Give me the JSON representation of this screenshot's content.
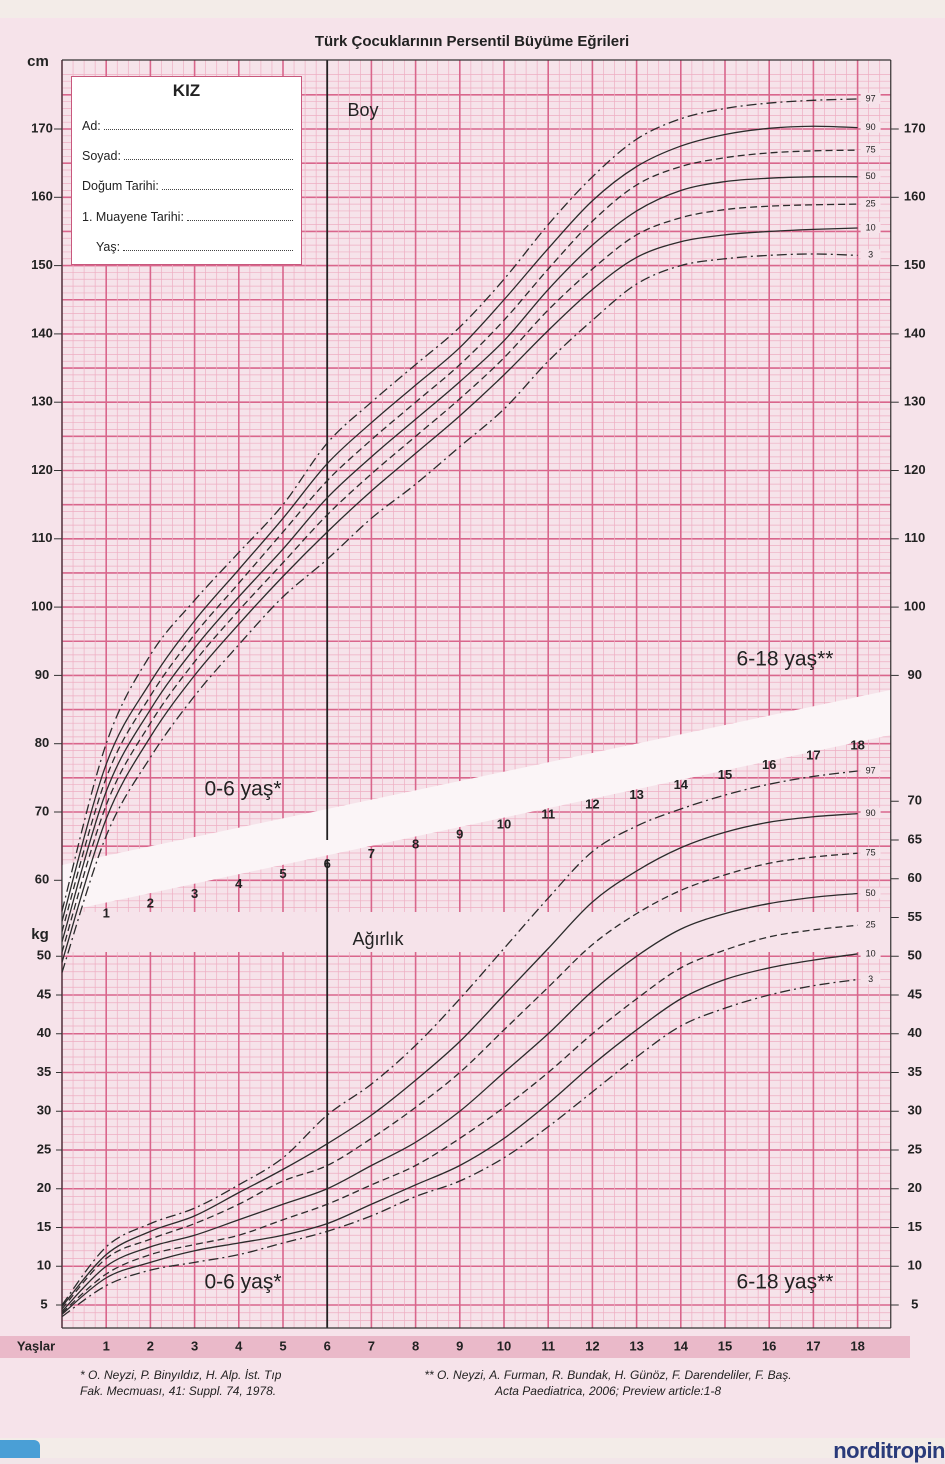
{
  "title": "Türk Çocuklarının Persentil Büyüme Eğrileri",
  "form": {
    "heading": "KIZ",
    "fields": [
      "Ad:",
      "Soyad:",
      "Doğum Tarihi:",
      "1. Muayene Tarihi:",
      "Yaş:"
    ]
  },
  "labels": {
    "height_unit": "cm",
    "weight_unit": "kg",
    "height_title": "Boy",
    "weight_title": "Ağırlık",
    "range_young": "0-6 yaş*",
    "range_old": "6-18 yaş**",
    "age_axis": "Yaşlar"
  },
  "age_ticks": [
    1,
    2,
    3,
    4,
    5,
    6,
    7,
    8,
    9,
    10,
    11,
    12,
    13,
    14,
    15,
    16,
    17,
    18
  ],
  "footnotes": {
    "left": "* O. Neyzi, P. Binyıldız, H. Alp. İst. Tıp\nFak. Mecmuası, 41: Suppl. 74, 1978.",
    "right": "** O. Neyzi, A. Furman, R. Bundak, H. Günöz, F. Darendeliler, F. Baş.\nActa Paediatrica, 2006; Preview article:1-8"
  },
  "brand": "norditropin",
  "colors": {
    "grid_major": "#d9668c",
    "grid_minor": "#eeaec2",
    "background": "#f6e3ea",
    "curve": "#2b2b2b"
  },
  "chart_data": [
    {
      "type": "line",
      "title": "Boy",
      "xlabel": "Yaşlar",
      "ylabel": "cm",
      "xlim": [
        0,
        18
      ],
      "ylim": [
        55,
        175
      ],
      "yticks_left": [
        60,
        70,
        80,
        90,
        100,
        110,
        120,
        130,
        140,
        150,
        160,
        170
      ],
      "yticks_right": [
        90,
        100,
        110,
        120,
        130,
        140,
        150,
        160,
        170
      ],
      "grid": true,
      "x": [
        0,
        1,
        2,
        3,
        4,
        5,
        6,
        7,
        8,
        9,
        10,
        11,
        12,
        13,
        14,
        15,
        16,
        17,
        18
      ],
      "series": [
        {
          "name": "97",
          "style": "dashdot",
          "values": [
            55.5,
            80,
            93,
            101,
            108,
            115,
            124,
            130,
            135.5,
            141,
            148,
            156,
            163,
            168.5,
            171.5,
            173,
            173.8,
            174.2,
            174.4
          ]
        },
        {
          "name": "90",
          "style": "solid",
          "values": [
            54,
            77,
            89,
            98,
            105.5,
            113,
            121,
            127,
            132.5,
            138,
            145,
            152.5,
            159.5,
            164.5,
            167.5,
            169.2,
            170.1,
            170.4,
            170.2
          ]
        },
        {
          "name": "75",
          "style": "dashed",
          "values": [
            52.5,
            75,
            87,
            96,
            103.5,
            111,
            118.5,
            124.5,
            130,
            135.5,
            142,
            149.5,
            156.5,
            161.8,
            164.5,
            165.8,
            166.5,
            166.8,
            166.9
          ]
        },
        {
          "name": "50",
          "style": "solid",
          "values": [
            51,
            73,
            85,
            94,
            101.5,
            108.5,
            116,
            122,
            127.5,
            133,
            139,
            146.5,
            153,
            158,
            161,
            162.3,
            162.8,
            163,
            163
          ]
        },
        {
          "name": "25",
          "style": "dashed",
          "values": [
            49.5,
            71,
            83,
            92,
            99.5,
            106.5,
            113.5,
            119.5,
            125,
            130.5,
            136.5,
            143.5,
            149.5,
            154.5,
            157,
            158.2,
            158.7,
            158.9,
            159
          ]
        },
        {
          "name": "10",
          "style": "solid",
          "values": [
            48,
            69,
            81,
            90,
            97.5,
            104.5,
            111,
            117,
            122.5,
            128,
            134,
            140.5,
            146.5,
            151.2,
            153.5,
            154.5,
            155,
            155.3,
            155.5
          ]
        },
        {
          "name": "3",
          "style": "dashdot",
          "values": [
            46.5,
            66.5,
            78,
            87,
            94.5,
            101.5,
            107,
            113,
            118,
            123.5,
            129,
            136,
            142,
            147.3,
            150,
            151,
            151.5,
            151.7,
            151.5
          ]
        }
      ]
    },
    {
      "type": "line",
      "title": "Ağırlık",
      "xlabel": "Yaşlar",
      "ylabel": "kg",
      "xlim": [
        0,
        18
      ],
      "ylim": [
        2,
        50
      ],
      "yticks_left": [
        5,
        10,
        15,
        20,
        25,
        30,
        35,
        40,
        45,
        50
      ],
      "yticks_right": [
        5,
        10,
        15,
        20,
        25,
        30,
        35,
        40,
        45,
        50,
        55,
        60,
        65,
        70
      ],
      "grid": true,
      "x": [
        0,
        1,
        2,
        3,
        4,
        5,
        6,
        7,
        8,
        9,
        10,
        11,
        12,
        13,
        14,
        15,
        16,
        17,
        18
      ],
      "series": [
        {
          "name": "97",
          "style": "dashdot",
          "values": [
            5,
            12.5,
            15.5,
            17.5,
            20.5,
            24,
            29.5,
            33.5,
            38.5,
            44.5,
            51,
            57.5,
            63.5,
            66.8,
            69,
            70.8,
            72.2,
            73.2,
            73.9
          ]
        },
        {
          "name": "90",
          "style": "solid",
          "values": [
            4.8,
            11.5,
            14.5,
            16.5,
            19.5,
            22.5,
            25.8,
            29.5,
            34,
            39,
            45,
            51,
            57,
            61,
            64,
            66,
            67.3,
            68,
            68.4
          ]
        },
        {
          "name": "75",
          "style": "dashed",
          "values": [
            4.5,
            11,
            13.5,
            15.5,
            18,
            21,
            23,
            26.5,
            30.5,
            35,
            40.5,
            46,
            51.5,
            55.5,
            58.5,
            60.5,
            62,
            62.8,
            63.3
          ]
        },
        {
          "name": "50",
          "style": "solid",
          "values": [
            4.2,
            10,
            12.5,
            14,
            16,
            18,
            20,
            23,
            26,
            30,
            35,
            40,
            45.5,
            50,
            53.5,
            55.5,
            56.8,
            57.6,
            58.1
          ]
        },
        {
          "name": "25",
          "style": "dashed",
          "values": [
            4,
            9,
            11.5,
            12.8,
            14,
            16,
            18,
            20.5,
            23,
            26.5,
            30.5,
            35,
            40,
            44.5,
            48.5,
            50.8,
            52.5,
            53.4,
            54
          ]
        },
        {
          "name": "10",
          "style": "solid",
          "values": [
            3.8,
            8.5,
            10.5,
            12,
            13,
            14,
            15.5,
            18,
            20.5,
            23,
            26.5,
            31,
            36,
            40.5,
            44.5,
            47,
            48.5,
            49.5,
            50.3
          ]
        },
        {
          "name": "3",
          "style": "dashdot",
          "values": [
            3.5,
            7.5,
            9.5,
            10.5,
            11.5,
            13,
            14.5,
            16.5,
            19,
            21,
            24,
            28,
            32.5,
            37,
            41,
            43.3,
            45,
            46.2,
            47
          ]
        }
      ]
    }
  ]
}
